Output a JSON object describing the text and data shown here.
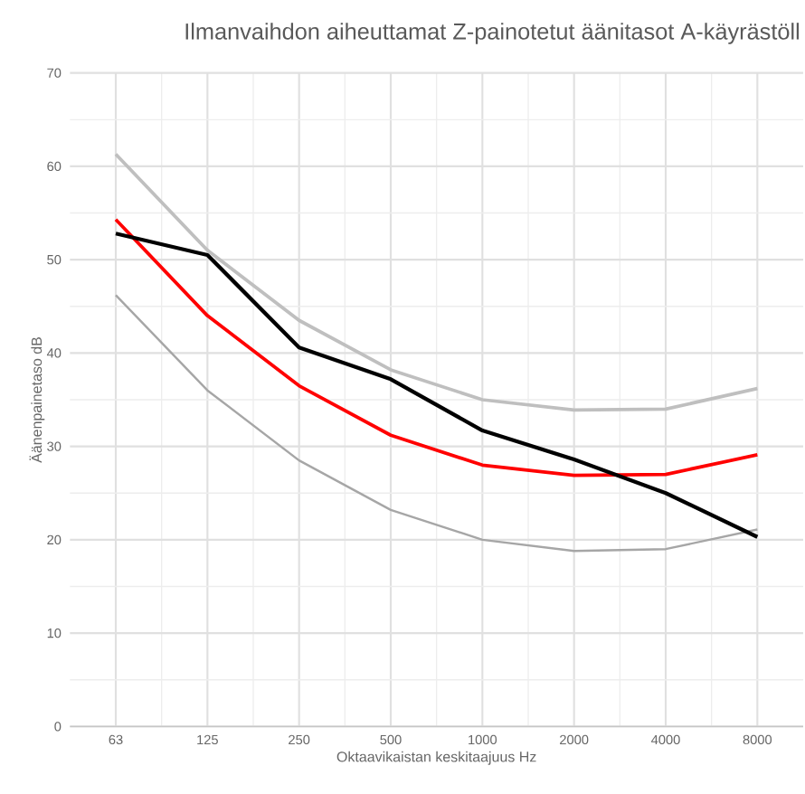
{
  "chart_data": {
    "type": "line",
    "title": "Ilmanvaihdon aiheuttamat Z-painotetut äänitasot A-käyrästöll",
    "xlabel": "Oktaavikaistan keskitaajuus Hz",
    "ylabel": "Äänenpainetaso dB",
    "categories": [
      "63",
      "125",
      "250",
      "500",
      "1000",
      "2000",
      "4000",
      "8000"
    ],
    "series": [
      {
        "color": "#bfbfbf",
        "values": [
          61.3,
          51,
          43.5,
          38.2,
          35,
          33.9,
          34,
          36.2
        ]
      },
      {
        "color": "#a6a6a6",
        "values": [
          46.2,
          36,
          28.5,
          23.2,
          20,
          18.8,
          19,
          21.1
        ]
      },
      {
        "color": "#ff0000",
        "values": [
          54.3,
          44,
          36.5,
          31.2,
          28,
          26.9,
          27,
          29.1
        ]
      },
      {
        "color": "#000000",
        "values": [
          52.8,
          50.5,
          40.6,
          37.2,
          31.7,
          28.6,
          25,
          20.3
        ]
      }
    ],
    "ylim": [
      0,
      70
    ],
    "yticks": [
      0,
      10,
      20,
      30,
      40,
      50,
      60,
      70
    ],
    "grid": true,
    "marker": "none",
    "line_style": "solid"
  }
}
